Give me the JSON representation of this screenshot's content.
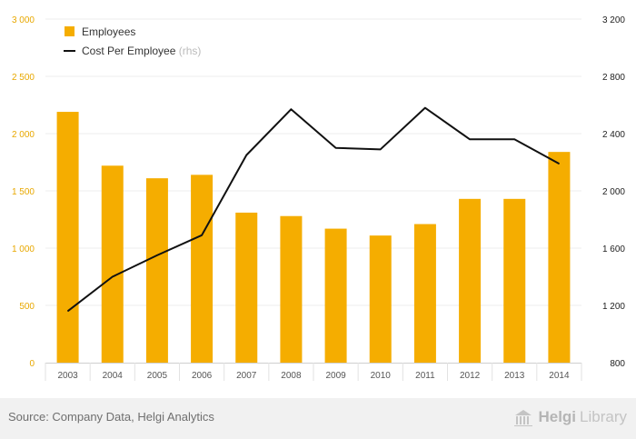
{
  "chart_data": {
    "type": "bar+line",
    "categories": [
      "2003",
      "2004",
      "2005",
      "2006",
      "2007",
      "2008",
      "2009",
      "2010",
      "2011",
      "2012",
      "2013",
      "2014"
    ],
    "series": [
      {
        "name": "Employees",
        "type": "bar",
        "axis": "left",
        "color": "#f5ad00",
        "values": [
          2190,
          1720,
          1610,
          1640,
          1310,
          1280,
          1170,
          1110,
          1210,
          1430,
          1430,
          1840
        ]
      },
      {
        "name": "Cost Per Employee",
        "suffix": "(rhs)",
        "type": "line",
        "axis": "right",
        "color": "#111111",
        "values": [
          1160,
          1400,
          1550,
          1690,
          2250,
          2570,
          2300,
          2290,
          2580,
          2360,
          2360,
          2190
        ]
      }
    ],
    "y_left": {
      "min": 0,
      "max": 3000,
      "ticks": [
        0,
        500,
        1000,
        1500,
        2000,
        2500,
        3000
      ],
      "tick_labels": [
        "0",
        "500",
        "1 000",
        "1 500",
        "2 000",
        "2 500",
        "3 000"
      ],
      "color": "#e8a800"
    },
    "y_right": {
      "min": 800,
      "max": 3200,
      "ticks": [
        800,
        1200,
        1600,
        2000,
        2400,
        2800,
        3200
      ],
      "tick_labels": [
        "800",
        "1 200",
        "1 600",
        "2 000",
        "2 400",
        "2 800",
        "3 200"
      ],
      "color": "#222222"
    },
    "grid": true,
    "legend_position": "top-left"
  },
  "footer": {
    "source": "Source: Company Data, Helgi Analytics",
    "brand_part1": "Helgi",
    "brand_part2": "Library"
  }
}
